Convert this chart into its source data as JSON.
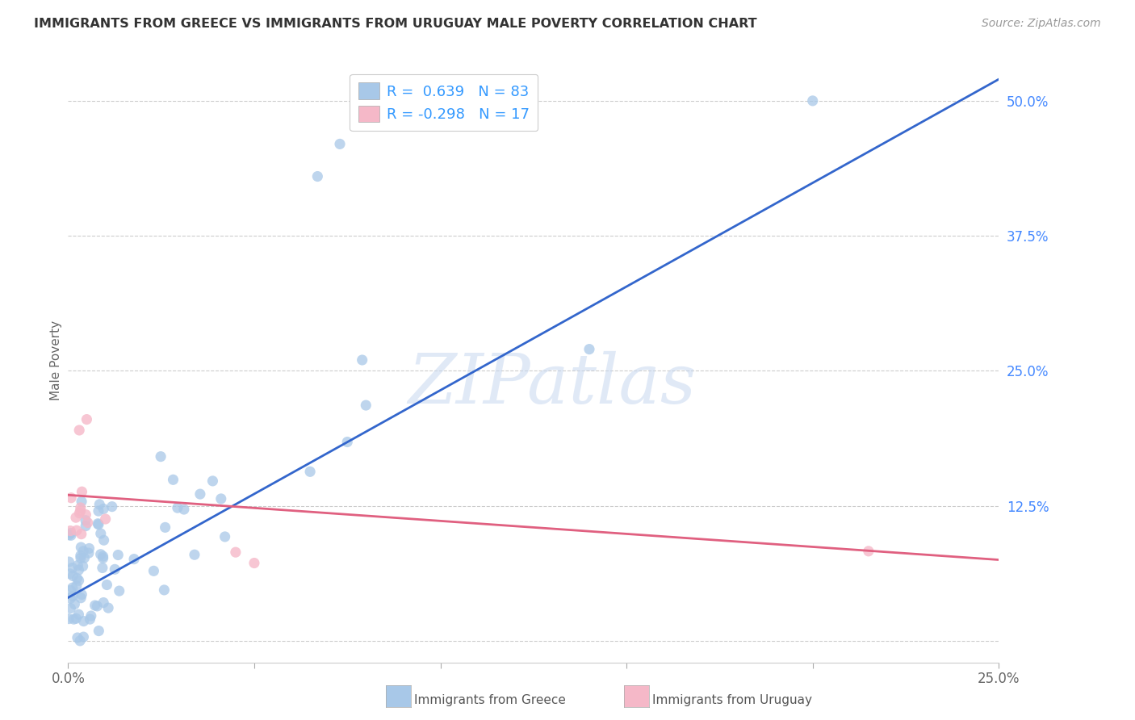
{
  "title": "IMMIGRANTS FROM GREECE VS IMMIGRANTS FROM URUGUAY MALE POVERTY CORRELATION CHART",
  "source": "Source: ZipAtlas.com",
  "ylabel": "Male Poverty",
  "xlim": [
    0.0,
    0.25
  ],
  "ylim": [
    -0.02,
    0.54
  ],
  "xticks": [
    0.0,
    0.05,
    0.1,
    0.15,
    0.2,
    0.25
  ],
  "xtick_labels": [
    "0.0%",
    "",
    "",
    "",
    "",
    "25.0%"
  ],
  "ytick_positions": [
    0.0,
    0.125,
    0.25,
    0.375,
    0.5
  ],
  "ytick_labels": [
    "",
    "12.5%",
    "25.0%",
    "37.5%",
    "50.0%"
  ],
  "background_color": "#ffffff",
  "grid_color": "#cccccc",
  "greece_color": "#a8c8e8",
  "uruguay_color": "#f5b8c8",
  "greece_R": 0.639,
  "greece_N": 83,
  "uruguay_R": -0.298,
  "uruguay_N": 17,
  "greece_line_color": "#3366cc",
  "uruguay_line_color": "#e06080",
  "greece_line_x0": 0.0,
  "greece_line_y0": 0.04,
  "greece_line_x1": 0.25,
  "greece_line_y1": 0.52,
  "uruguay_line_x0": 0.0,
  "uruguay_line_y0": 0.135,
  "uruguay_line_x1": 0.25,
  "uruguay_line_y1": 0.075,
  "watermark_text": "ZIPatlas",
  "legend_text_color": "#3399ff",
  "title_color": "#333333",
  "source_color": "#999999",
  "ylabel_color": "#666666",
  "xtick_color": "#666666",
  "ytick_color": "#4488ff"
}
